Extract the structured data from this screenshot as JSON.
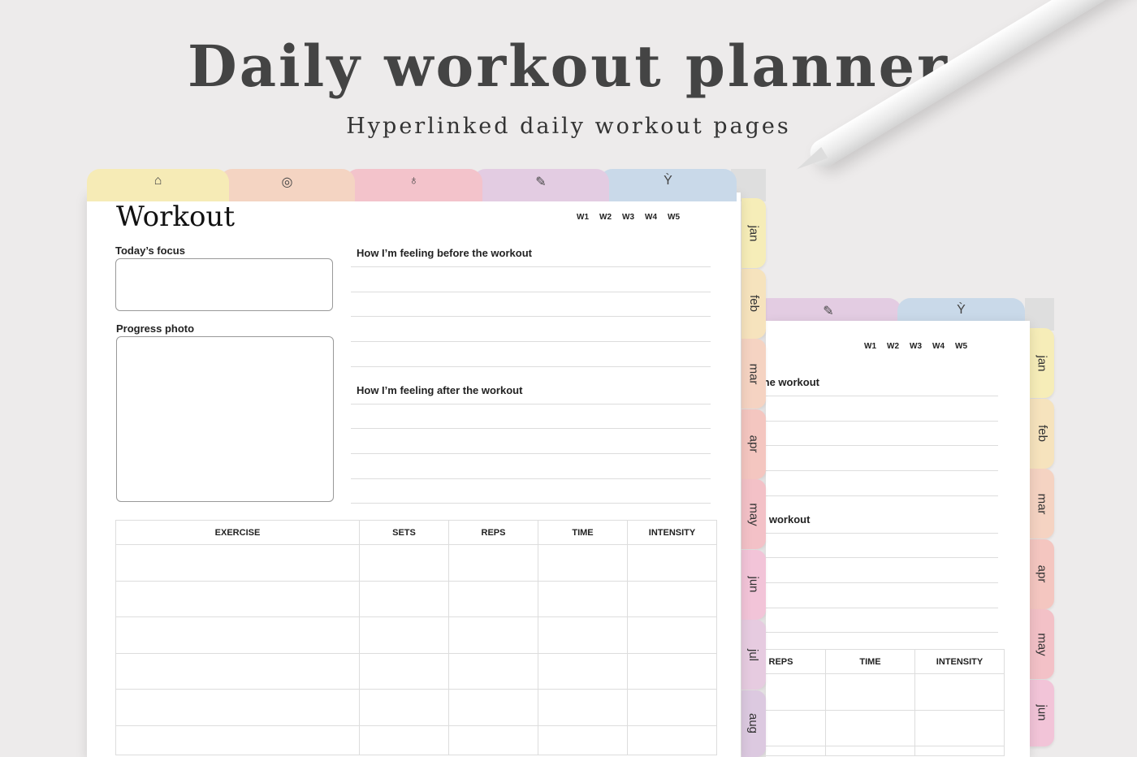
{
  "header": {
    "title": "Daily workout planner",
    "subtitle": "Hyperlinked daily workout pages"
  },
  "tabs": [
    {
      "icon": "home-icon",
      "color": "#f6ebb6",
      "glyph": "⌂"
    },
    {
      "icon": "target-icon",
      "color": "#f4d4c2",
      "glyph": "◎"
    },
    {
      "icon": "apple-icon",
      "color": "#f3c3cb",
      "glyph": "♁"
    },
    {
      "icon": "pencil-icon",
      "color": "#e3cce2",
      "glyph": "✎"
    },
    {
      "icon": "plant-icon",
      "color": "#c9d9e9",
      "glyph": "Ỳ"
    }
  ],
  "months": [
    {
      "label": "jan",
      "color": "#f6edb8"
    },
    {
      "label": "feb",
      "color": "#f6e3bd"
    },
    {
      "label": "mar",
      "color": "#f5d3c2"
    },
    {
      "label": "apr",
      "color": "#f4c6c0"
    },
    {
      "label": "may",
      "color": "#f3c1c7"
    },
    {
      "label": "jun",
      "color": "#f2c4d8"
    },
    {
      "label": "jul",
      "color": "#e6cbe0"
    },
    {
      "label": "aug",
      "color": "#dcc9e0"
    }
  ],
  "page": {
    "title": "Workout",
    "weeks": [
      "W1",
      "W2",
      "W3",
      "W4",
      "W5"
    ],
    "focus_label": "Today’s focus",
    "photo_label": "Progress photo",
    "before_label": "How I’m feeling before the workout",
    "after_label": "How I’m feeling after the workout",
    "table": {
      "columns": [
        "EXERCISE",
        "SETS",
        "REPS",
        "TIME",
        "INTENSITY"
      ]
    }
  }
}
